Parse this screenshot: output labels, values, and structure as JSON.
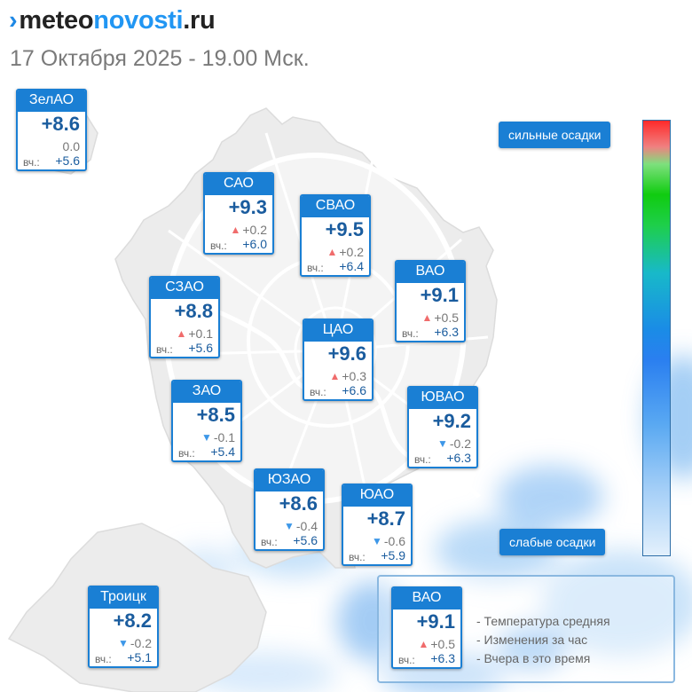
{
  "brand": {
    "mark": "›",
    "part1": "meteo",
    "part2": "novosti",
    "part3": ".ru"
  },
  "subtitle": "17 Октября 2025 - 19.00 Мск.",
  "yesterday_label": "вч.:",
  "districts": [
    {
      "name": "ЗелАО",
      "temp": "+8.6",
      "delta": "0.0",
      "trend": "none",
      "yesterday": "+5.6"
    },
    {
      "name": "САО",
      "temp": "+9.3",
      "delta": "+0.2",
      "trend": "up",
      "yesterday": "+6.0"
    },
    {
      "name": "СВАО",
      "temp": "+9.5",
      "delta": "+0.2",
      "trend": "up",
      "yesterday": "+6.4"
    },
    {
      "name": "ВАО",
      "temp": "+9.1",
      "delta": "+0.5",
      "trend": "up",
      "yesterday": "+6.3"
    },
    {
      "name": "СЗАО",
      "temp": "+8.8",
      "delta": "+0.1",
      "trend": "up",
      "yesterday": "+5.6"
    },
    {
      "name": "ЦАО",
      "temp": "+9.6",
      "delta": "+0.3",
      "trend": "up",
      "yesterday": "+6.6"
    },
    {
      "name": "ЗАО",
      "temp": "+8.5",
      "delta": "-0.1",
      "trend": "down",
      "yesterday": "+5.4"
    },
    {
      "name": "ЮВАО",
      "temp": "+9.2",
      "delta": "-0.2",
      "trend": "down",
      "yesterday": "+6.3"
    },
    {
      "name": "ЮЗАО",
      "temp": "+8.6",
      "delta": "-0.4",
      "trend": "down",
      "yesterday": "+5.6"
    },
    {
      "name": "ЮАО",
      "temp": "+8.7",
      "delta": "-0.6",
      "trend": "down",
      "yesterday": "+5.9"
    },
    {
      "name": "Троицк",
      "temp": "+8.2",
      "delta": "-0.2",
      "trend": "down",
      "yesterday": "+5.1"
    }
  ],
  "precip_scale": {
    "top_label": "сильные осадки",
    "bottom_label": "слабые осадки"
  },
  "legend": {
    "sample": {
      "name": "ВАО",
      "temp": "+9.1",
      "delta": "+0.5",
      "trend": "up",
      "yesterday": "+6.3"
    },
    "lines": [
      "- Температура средняя",
      "- Изменения за час",
      "- Вчера в это время"
    ]
  },
  "colors": {
    "accent": "#1a7fd4",
    "temp_text": "#1a5c9e",
    "trend_up": "#f06c6c",
    "trend_down": "#3d97e8"
  },
  "icons": {
    "trend_up": "triangle-up-icon",
    "trend_down": "triangle-down-icon"
  }
}
